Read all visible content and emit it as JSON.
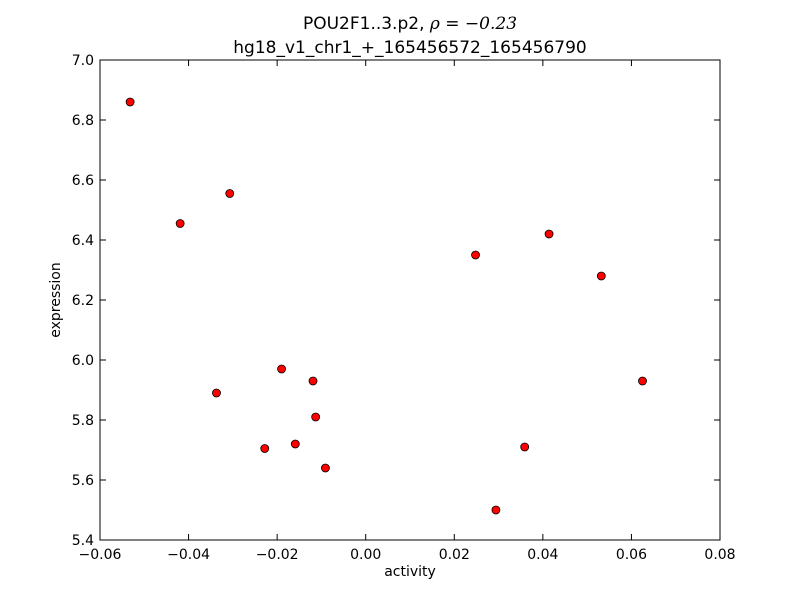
{
  "chart_data": {
    "type": "scatter",
    "title_line1_prefix": "POU2F1..3.p2, ",
    "title_line1_math": "ρ = −0.23",
    "title_line2": "hg18_v1_chr1_+_165456572_165456790",
    "xlabel": "activity",
    "ylabel": "expression",
    "xlim": [
      -0.06,
      0.08
    ],
    "ylim": [
      5.4,
      7.0
    ],
    "xticks": [
      -0.06,
      -0.04,
      -0.02,
      0.0,
      0.02,
      0.04,
      0.06,
      0.08
    ],
    "xtick_labels": [
      "−0.06",
      "−0.04",
      "−0.02",
      "0.00",
      "0.02",
      "0.04",
      "0.06",
      "0.08"
    ],
    "yticks": [
      5.4,
      5.6,
      5.8,
      6.0,
      6.2,
      6.4,
      6.6,
      6.8,
      7.0
    ],
    "ytick_labels": [
      "5.4",
      "5.6",
      "5.8",
      "6.0",
      "6.2",
      "6.4",
      "6.6",
      "6.8",
      "7.0"
    ],
    "grid": false,
    "marker_color": "#ff0000",
    "marker_edge": "#000000",
    "points": [
      {
        "x": -0.0532,
        "y": 6.86
      },
      {
        "x": -0.0419,
        "y": 6.455
      },
      {
        "x": -0.0307,
        "y": 6.555
      },
      {
        "x": -0.0337,
        "y": 5.89
      },
      {
        "x": -0.0228,
        "y": 5.705
      },
      {
        "x": -0.019,
        "y": 5.97
      },
      {
        "x": -0.0159,
        "y": 5.72
      },
      {
        "x": -0.0119,
        "y": 5.93
      },
      {
        "x": -0.0113,
        "y": 5.81
      },
      {
        "x": -0.0091,
        "y": 5.64
      },
      {
        "x": 0.0248,
        "y": 6.35
      },
      {
        "x": 0.0294,
        "y": 5.5
      },
      {
        "x": 0.0359,
        "y": 5.71
      },
      {
        "x": 0.0414,
        "y": 6.42
      },
      {
        "x": 0.0532,
        "y": 6.28
      },
      {
        "x": 0.0625,
        "y": 5.93
      }
    ]
  }
}
